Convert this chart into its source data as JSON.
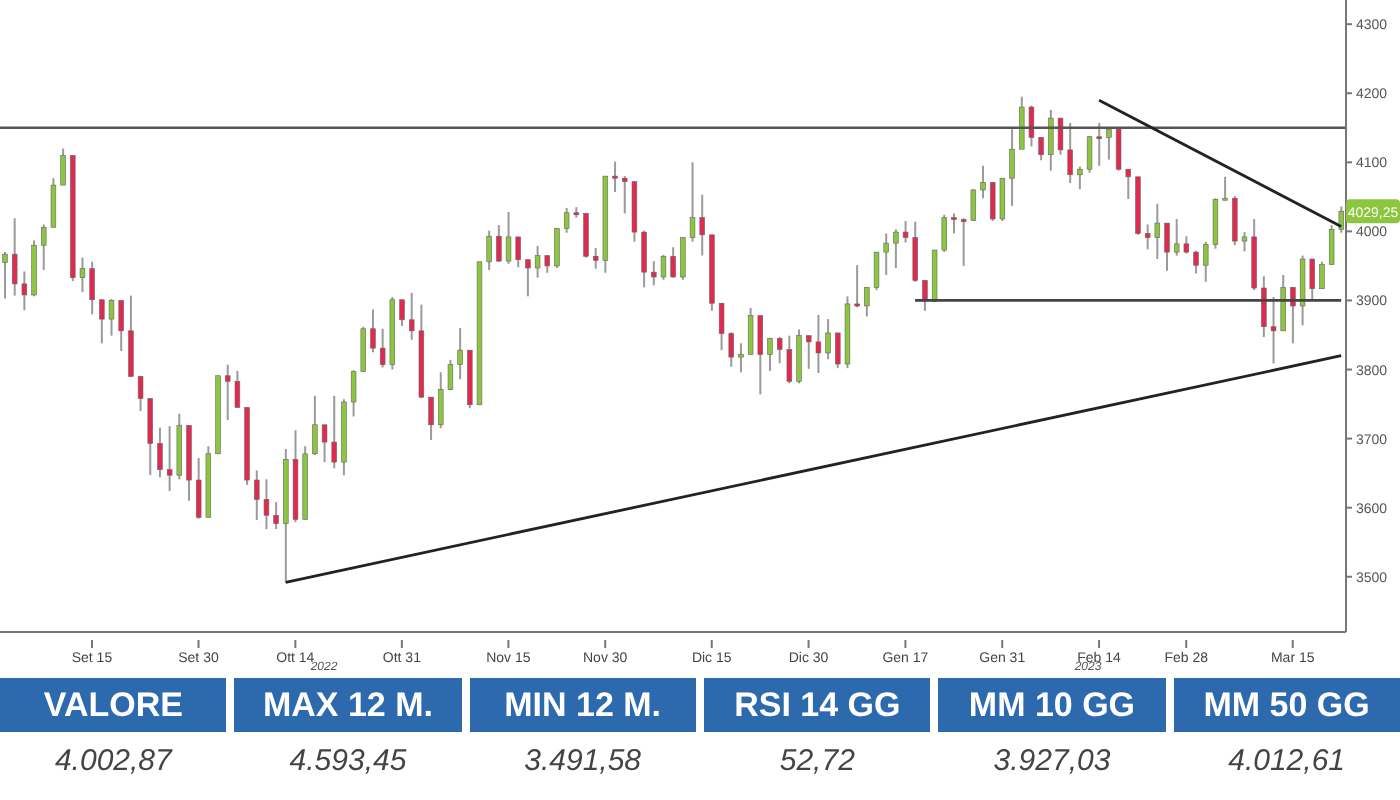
{
  "chart_data": {
    "type": "candlestick",
    "categories": [
      null,
      null,
      null,
      null,
      null,
      null,
      null,
      null,
      null,
      "Set 15",
      null,
      null,
      null,
      null,
      null,
      null,
      null,
      null,
      null,
      null,
      "Set 30",
      null,
      null,
      null,
      null,
      null,
      null,
      null,
      null,
      null,
      "Ott 14",
      null,
      null,
      null,
      null,
      null,
      null,
      null,
      null,
      null,
      null,
      "Ott 31",
      null,
      null,
      null,
      null,
      null,
      null,
      null,
      null,
      null,
      null,
      "Nov 15",
      null,
      null,
      null,
      null,
      null,
      null,
      null,
      null,
      null,
      "Nov 30",
      null,
      null,
      null,
      null,
      null,
      null,
      null,
      null,
      null,
      null,
      "Dic 15",
      null,
      null,
      null,
      null,
      null,
      null,
      null,
      null,
      null,
      "Dic 30",
      null,
      null,
      null,
      null,
      null,
      null,
      null,
      null,
      null,
      "Gen 17",
      null,
      null,
      null,
      null,
      null,
      null,
      null,
      null,
      null,
      "Gen 31",
      null,
      null,
      null,
      null,
      null,
      null,
      null,
      null,
      null,
      "Feb 14",
      null,
      null,
      null,
      null,
      null,
      null,
      null,
      null,
      "Feb 28",
      null,
      null,
      null,
      null,
      null,
      null,
      null,
      null,
      null,
      null,
      "Mar 15",
      null,
      null,
      null,
      null,
      null
    ],
    "ohlc": [
      [
        3955,
        3970,
        3903,
        3967
      ],
      [
        3967,
        4019,
        3907,
        3924
      ],
      [
        3924,
        3942,
        3886,
        3908
      ],
      [
        3908,
        3987,
        3906,
        3980
      ],
      [
        3980,
        4010,
        3944,
        4006
      ],
      [
        4006,
        4077,
        4006,
        4067
      ],
      [
        4067,
        4120,
        4067,
        4110
      ],
      [
        4110,
        4110,
        3928,
        3933
      ],
      [
        3933,
        3962,
        3912,
        3946
      ],
      [
        3946,
        3956,
        3880,
        3901
      ],
      [
        3901,
        3901,
        3838,
        3873
      ],
      [
        3873,
        3902,
        3849,
        3900
      ],
      [
        3900,
        3900,
        3827,
        3856
      ],
      [
        3856,
        3907,
        3789,
        3790
      ],
      [
        3790,
        3790,
        3740,
        3758
      ],
      [
        3758,
        3758,
        3647,
        3693
      ],
      [
        3693,
        3716,
        3644,
        3655
      ],
      [
        3655,
        3718,
        3624,
        3647
      ],
      [
        3647,
        3736,
        3641,
        3719
      ],
      [
        3719,
        3719,
        3610,
        3640
      ],
      [
        3640,
        3672,
        3584,
        3586
      ],
      [
        3586,
        3689,
        3586,
        3678
      ],
      [
        3678,
        3791,
        3678,
        3791
      ],
      [
        3791,
        3807,
        3727,
        3783
      ],
      [
        3783,
        3798,
        3745,
        3745
      ],
      [
        3745,
        3745,
        3633,
        3640
      ],
      [
        3640,
        3654,
        3582,
        3612
      ],
      [
        3612,
        3641,
        3569,
        3589
      ],
      [
        3589,
        3608,
        3569,
        3577
      ],
      [
        3577,
        3685,
        3492,
        3670
      ],
      [
        3670,
        3712,
        3579,
        3583
      ],
      [
        3583,
        3689,
        3583,
        3678
      ],
      [
        3678,
        3762,
        3676,
        3720
      ],
      [
        3720,
        3720,
        3666,
        3695
      ],
      [
        3695,
        3762,
        3657,
        3666
      ],
      [
        3666,
        3757,
        3647,
        3753
      ],
      [
        3753,
        3799,
        3732,
        3797
      ],
      [
        3797,
        3862,
        3797,
        3859
      ],
      [
        3859,
        3887,
        3825,
        3831
      ],
      [
        3831,
        3859,
        3803,
        3807
      ],
      [
        3807,
        3905,
        3800,
        3901
      ],
      [
        3901,
        3901,
        3863,
        3872
      ],
      [
        3872,
        3911,
        3843,
        3856
      ],
      [
        3856,
        3894,
        3759,
        3760
      ],
      [
        3760,
        3760,
        3698,
        3720
      ],
      [
        3720,
        3796,
        3715,
        3771
      ],
      [
        3771,
        3814,
        3770,
        3807
      ],
      [
        3807,
        3860,
        3786,
        3828
      ],
      [
        3828,
        3828,
        3744,
        3749
      ],
      [
        3749,
        3956,
        3749,
        3956
      ],
      [
        3956,
        4001,
        3944,
        3993
      ],
      [
        3993,
        4009,
        3956,
        3957
      ],
      [
        3957,
        4028,
        3953,
        3992
      ],
      [
        3992,
        3992,
        3948,
        3959
      ],
      [
        3959,
        3959,
        3906,
        3947
      ],
      [
        3947,
        3979,
        3933,
        3965
      ],
      [
        3965,
        3965,
        3940,
        3950
      ],
      [
        3950,
        4005,
        3947,
        4004
      ],
      [
        4004,
        4034,
        3998,
        4027
      ],
      [
        4027,
        4035,
        4020,
        4026
      ],
      [
        4026,
        4026,
        3962,
        3964
      ],
      [
        3964,
        3976,
        3946,
        3958
      ],
      [
        3958,
        4080,
        3940,
        4080
      ],
      [
        4080,
        4101,
        4057,
        4077
      ],
      [
        4077,
        4080,
        4026,
        4072
      ],
      [
        4072,
        4072,
        3985,
        3999
      ],
      [
        3999,
        4001,
        3919,
        3941
      ],
      [
        3941,
        3957,
        3922,
        3934
      ],
      [
        3934,
        3966,
        3930,
        3964
      ],
      [
        3964,
        3977,
        3933,
        3934
      ],
      [
        3934,
        3991,
        3930,
        3991
      ],
      [
        3991,
        4100,
        3985,
        4020
      ],
      [
        4020,
        4053,
        3965,
        3995
      ],
      [
        3995,
        3995,
        3885,
        3896
      ],
      [
        3896,
        3896,
        3828,
        3852
      ],
      [
        3852,
        3854,
        3804,
        3818
      ],
      [
        3818,
        3838,
        3796,
        3822
      ],
      [
        3822,
        3889,
        3822,
        3878
      ],
      [
        3878,
        3878,
        3764,
        3822
      ],
      [
        3822,
        3846,
        3798,
        3845
      ],
      [
        3845,
        3847,
        3809,
        3829
      ],
      [
        3829,
        3849,
        3780,
        3783
      ],
      [
        3783,
        3858,
        3780,
        3849
      ],
      [
        3849,
        3849,
        3801,
        3840
      ],
      [
        3840,
        3879,
        3795,
        3824
      ],
      [
        3824,
        3873,
        3815,
        3853
      ],
      [
        3853,
        3853,
        3802,
        3808
      ],
      [
        3808,
        3906,
        3802,
        3895
      ],
      [
        3895,
        3951,
        3890,
        3892
      ],
      [
        3892,
        3919,
        3877,
        3919
      ],
      [
        3919,
        3970,
        3915,
        3970
      ],
      [
        3970,
        3997,
        3937,
        3983
      ],
      [
        3983,
        4003,
        3947,
        3999
      ],
      [
        3999,
        4015,
        3984,
        3991
      ],
      [
        3991,
        4014,
        3927,
        3929
      ],
      [
        3929,
        3929,
        3885,
        3899
      ],
      [
        3899,
        3973,
        3898,
        3973
      ],
      [
        3973,
        4024,
        3970,
        4020
      ],
      [
        4020,
        4026,
        3997,
        4017
      ],
      [
        4017,
        4019,
        3950,
        4016
      ],
      [
        4016,
        4061,
        4015,
        4060
      ],
      [
        4060,
        4095,
        4048,
        4071
      ],
      [
        4071,
        4071,
        4015,
        4018
      ],
      [
        4018,
        4077,
        4015,
        4077
      ],
      [
        4077,
        4148,
        4037,
        4119
      ],
      [
        4119,
        4195,
        4119,
        4180
      ],
      [
        4180,
        4182,
        4123,
        4136
      ],
      [
        4136,
        4136,
        4103,
        4111
      ],
      [
        4111,
        4176,
        4088,
        4164
      ],
      [
        4164,
        4164,
        4111,
        4118
      ],
      [
        4118,
        4157,
        4070,
        4082
      ],
      [
        4082,
        4094,
        4061,
        4090
      ],
      [
        4090,
        4138,
        4085,
        4137
      ],
      [
        4137,
        4157,
        4095,
        4136
      ],
      [
        4136,
        4148,
        4104,
        4148
      ],
      [
        4148,
        4148,
        4088,
        4090
      ],
      [
        4090,
        4090,
        4047,
        4079
      ],
      [
        4079,
        4079,
        3995,
        3997
      ],
      [
        3997,
        4010,
        3974,
        3991
      ],
      [
        3991,
        4040,
        3960,
        4012
      ],
      [
        4012,
        4012,
        3943,
        3970
      ],
      [
        3970,
        4018,
        3965,
        3982
      ],
      [
        3982,
        3993,
        3968,
        3970
      ],
      [
        3970,
        3972,
        3939,
        3951
      ],
      [
        3951,
        3985,
        3927,
        3981
      ],
      [
        3981,
        4048,
        3975,
        4046
      ],
      [
        4046,
        4079,
        4045,
        4048
      ],
      [
        4048,
        4051,
        3980,
        3986
      ],
      [
        3986,
        3999,
        3971,
        3992
      ],
      [
        3992,
        4018,
        3915,
        3918
      ],
      [
        3918,
        3935,
        3847,
        3862
      ],
      [
        3862,
        3905,
        3809,
        3856
      ],
      [
        3856,
        3937,
        3856,
        3919
      ],
      [
        3919,
        3919,
        3838,
        3892
      ],
      [
        3892,
        3965,
        3864,
        3960
      ],
      [
        3960,
        3960,
        3901,
        3917
      ],
      [
        3917,
        3956,
        3917,
        3952
      ],
      [
        3952,
        4009,
        3952,
        4003
      ],
      [
        4003,
        4036,
        3998,
        4029.25
      ]
    ],
    "colors": [
      "#8cc63f",
      "#e2294f",
      "#e2294f",
      "#8cc63f",
      "#8cc63f",
      "#8cc63f",
      "#8cc63f",
      "#e2294f",
      "#8cc63f",
      "#e2294f",
      "#e2294f",
      "#8cc63f",
      "#e2294f",
      "#e2294f",
      "#e2294f",
      "#e2294f",
      "#e2294f",
      "#e2294f",
      "#8cc63f",
      "#e2294f",
      "#e2294f",
      "#8cc63f",
      "#8cc63f",
      "#e2294f",
      "#e2294f",
      "#e2294f",
      "#e2294f",
      "#e2294f",
      "#e2294f",
      "#8cc63f",
      "#e2294f",
      "#8cc63f",
      "#8cc63f",
      "#e2294f",
      "#e2294f",
      "#8cc63f",
      "#8cc63f",
      "#8cc63f",
      "#e2294f",
      "#e2294f",
      "#8cc63f",
      "#e2294f",
      "#e2294f",
      "#e2294f",
      "#e2294f",
      "#8cc63f",
      "#8cc63f",
      "#8cc63f",
      "#e2294f",
      "#8cc63f",
      "#8cc63f",
      "#e2294f",
      "#8cc63f",
      "#e2294f",
      "#e2294f",
      "#8cc63f",
      "#e2294f",
      "#8cc63f",
      "#8cc63f",
      "#e2294f",
      "#e2294f",
      "#e2294f",
      "#8cc63f",
      "#e2294f",
      "#e2294f",
      "#e2294f",
      "#e2294f",
      "#e2294f",
      "#8cc63f",
      "#e2294f",
      "#8cc63f",
      "#8cc63f",
      "#e2294f",
      "#e2294f",
      "#e2294f",
      "#e2294f",
      "#8cc63f",
      "#8cc63f",
      "#e2294f",
      "#8cc63f",
      "#e2294f",
      "#e2294f",
      "#8cc63f",
      "#e2294f",
      "#e2294f",
      "#8cc63f",
      "#e2294f",
      "#8cc63f",
      "#e2294f",
      "#8cc63f",
      "#8cc63f",
      "#8cc63f",
      "#8cc63f",
      "#e2294f",
      "#e2294f",
      "#e2294f",
      "#8cc63f",
      "#8cc63f",
      "#e2294f",
      "#e2294f",
      "#8cc63f",
      "#8cc63f",
      "#e2294f",
      "#8cc63f",
      "#8cc63f",
      "#8cc63f",
      "#e2294f",
      "#e2294f",
      "#8cc63f",
      "#e2294f",
      "#e2294f",
      "#8cc63f",
      "#8cc63f",
      "#e2294f",
      "#8cc63f",
      "#e2294f",
      "#e2294f",
      "#e2294f",
      "#e2294f",
      "#8cc63f",
      "#e2294f",
      "#8cc63f",
      "#e2294f",
      "#e2294f",
      "#8cc63f",
      "#8cc63f",
      "#8cc63f",
      "#e2294f",
      "#8cc63f",
      "#e2294f",
      "#e2294f",
      "#e2294f",
      "#8cc63f",
      "#e2294f",
      "#8cc63f",
      "#e2294f",
      "#8cc63f",
      "#8cc63f",
      "#8cc63f"
    ],
    "series": [
      {
        "type": "line",
        "color": "#222222",
        "values": [
          null,
          null,
          null,
          null,
          null,
          null,
          null,
          null,
          null,
          null,
          null,
          null,
          null,
          null,
          null,
          null,
          null,
          null,
          null,
          null,
          null,
          null,
          null,
          null,
          null,
          null,
          null,
          null,
          null,
          3492,
          null,
          null,
          null,
          null,
          null,
          null,
          null,
          null,
          null,
          null,
          null,
          null,
          null,
          null,
          null,
          null,
          null,
          null,
          null,
          null,
          null,
          null,
          null,
          null,
          null,
          null,
          null,
          null,
          null,
          null,
          null,
          null,
          null,
          null,
          null,
          null,
          null,
          null,
          null,
          null,
          null,
          null,
          null,
          null,
          null,
          null,
          null,
          null,
          null,
          null,
          null,
          null,
          null,
          null,
          null,
          null,
          null,
          null,
          null,
          null,
          null,
          null,
          null,
          null,
          null,
          null,
          null,
          null,
          null,
          null,
          null,
          null,
          null,
          null,
          null,
          null,
          null,
          null,
          null,
          null,
          null,
          null,
          null,
          null,
          null,
          null,
          null,
          null,
          null,
          null,
          null,
          null,
          null,
          null,
          null,
          null,
          null,
          null,
          null,
          null,
          null,
          null,
          null,
          null,
          null,
          null,
          null,
          null,
          3820
        ]
      },
      {
        "type": "line",
        "color": "#222222",
        "values": [
          null,
          null,
          null,
          null,
          null,
          null,
          null,
          null,
          null,
          null,
          null,
          null,
          null,
          null,
          null,
          null,
          null,
          null,
          null,
          null,
          null,
          null,
          null,
          null,
          null,
          null,
          null,
          null,
          null,
          null,
          null,
          null,
          null,
          null,
          null,
          null,
          null,
          null,
          null,
          null,
          null,
          null,
          null,
          null,
          null,
          null,
          null,
          null,
          null,
          null,
          null,
          null,
          null,
          null,
          null,
          null,
          null,
          null,
          null,
          null,
          null,
          null,
          null,
          null,
          null,
          null,
          null,
          null,
          null,
          null,
          null,
          null,
          null,
          null,
          null,
          null,
          null,
          null,
          null,
          null,
          null,
          null,
          null,
          null,
          null,
          null,
          null,
          null,
          null,
          null,
          null,
          null,
          null,
          null,
          null,
          null,
          null,
          null,
          null,
          null,
          null,
          null,
          null,
          null,
          null,
          null,
          null,
          null,
          null,
          null,
          null,
          null,
          null,
          4190,
          null,
          null,
          null,
          null,
          null,
          null,
          null,
          null,
          null,
          null,
          null,
          null,
          null,
          null,
          null,
          null,
          null,
          null,
          null,
          null,
          null,
          null,
          null,
          null,
          4007
        ]
      },
      {
        "type": "line",
        "color": "#444444",
        "values": [
          null,
          null,
          null,
          null,
          null,
          null,
          null,
          null,
          null,
          null,
          null,
          null,
          null,
          null,
          null,
          null,
          null,
          null,
          null,
          null,
          null,
          null,
          null,
          null,
          null,
          null,
          null,
          null,
          null,
          null,
          null,
          null,
          null,
          null,
          null,
          null,
          null,
          null,
          null,
          null,
          null,
          null,
          null,
          null,
          null,
          null,
          null,
          null,
          null,
          null,
          null,
          null,
          null,
          null,
          null,
          null,
          null,
          null,
          null,
          null,
          null,
          null,
          null,
          null,
          null,
          null,
          null,
          null,
          null,
          null,
          null,
          null,
          null,
          null,
          null,
          null,
          null,
          null,
          null,
          null,
          null,
          null,
          null,
          null,
          null,
          null,
          null,
          null,
          null,
          null,
          null,
          null,
          null,
          null,
          3900,
          null,
          null,
          null,
          null,
          null,
          null,
          null,
          null,
          null,
          null,
          null,
          null,
          null,
          null,
          null,
          null,
          null,
          null,
          null,
          null,
          null,
          null,
          null,
          null,
          null,
          null,
          null,
          null,
          null,
          null,
          null,
          null,
          null,
          null,
          null,
          null,
          null,
          null,
          null,
          null,
          null,
          null,
          null,
          3900
        ]
      }
    ],
    "ref_lines": [
      {
        "axis": "y",
        "value": 4150,
        "color": "#555555"
      }
    ],
    "ylim": [
      3420,
      4335
    ],
    "yticks": [
      3500,
      3600,
      3700,
      3800,
      3900,
      4000,
      4100,
      4200,
      4300
    ],
    "annotations": [
      "2022",
      "2023",
      {
        "text": "4029,25",
        "y": 4029.25
      },
      "VALORE",
      "4.002,87",
      "MAX 12 M.",
      "4.593,45",
      "MIN 12 M.",
      "3.491,58",
      "RSI 14 GG",
      "52,72",
      "MM 10 GG",
      "3.927,03",
      "MM 50 GG",
      "4.012,61"
    ]
  }
}
